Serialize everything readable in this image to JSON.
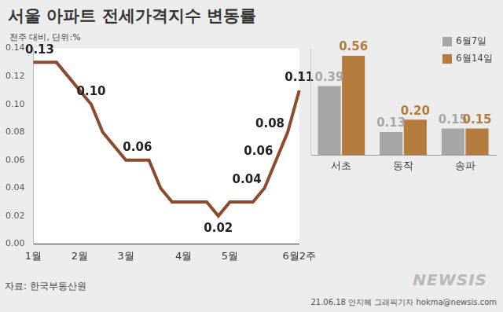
{
  "chart_data": [
    {
      "type": "line",
      "title": "서울 아파트 전세가격지수 변동률",
      "subtitle": "전주 대비, 단위:%",
      "categories": [
        "1월",
        null,
        null,
        null,
        "2월",
        null,
        null,
        null,
        "3월",
        null,
        null,
        null,
        null,
        "4월",
        null,
        null,
        null,
        "5월",
        null,
        null,
        null,
        null,
        null,
        "6월2주"
      ],
      "values": [
        0.13,
        0.13,
        0.13,
        0.12,
        0.11,
        0.1,
        0.08,
        0.07,
        0.06,
        0.06,
        0.06,
        0.04,
        0.03,
        0.03,
        0.03,
        0.03,
        0.02,
        0.03,
        0.03,
        0.03,
        0.04,
        0.06,
        0.08,
        0.11
      ],
      "value_labels": [
        "0.13",
        null,
        null,
        null,
        null,
        "0.10",
        null,
        null,
        null,
        "0.06",
        null,
        null,
        null,
        null,
        null,
        null,
        "0.02",
        null,
        null,
        null,
        "0.04",
        "0.06",
        "0.08",
        "0.11"
      ],
      "color": "#8c4a2f",
      "ylim": [
        0,
        0.14
      ],
      "yticks": [
        {
          "value": 0,
          "label": "0.00"
        },
        0.02,
        0.04,
        0.06,
        0.08,
        {
          "value": 0.1,
          "label": "0.10"
        },
        0.12,
        0.14
      ],
      "grid": false,
      "data_labels": true
    },
    {
      "type": "bar",
      "categories": [
        "서초",
        "동작",
        "송파"
      ],
      "series": [
        {
          "name": "6월7일",
          "color": "#a6a6a6",
          "values": [
            0.39,
            0.13,
            0.15
          ],
          "value_labels": [
            "0.39",
            "0.13",
            "0.15"
          ]
        },
        {
          "name": "6월14일",
          "color": "#b37b3e",
          "values": [
            0.56,
            0.2,
            0.15
          ],
          "value_labels": [
            "0.56",
            "0.20",
            "0.15"
          ]
        }
      ],
      "ylim": [
        0,
        0.6
      ],
      "tick_labels": "x",
      "grid": false,
      "data_labels": true,
      "legend": "upper right"
    }
  ],
  "source": "자료: 한국부동산원",
  "credit": "21.06.18 안지혜 그래픽기자 hokma@newsis.com",
  "logo": "NEWSIS"
}
